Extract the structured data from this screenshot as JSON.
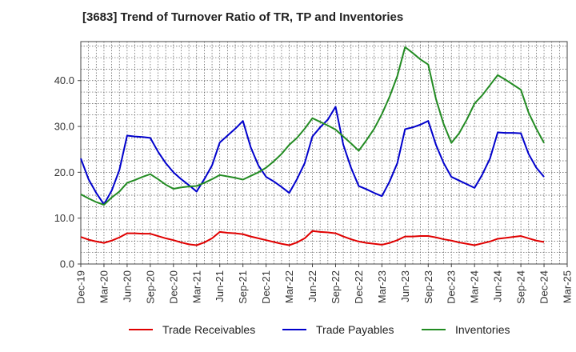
{
  "chart_data": {
    "type": "line",
    "title": "[3683]  Trend of Turnover Ratio of TR, TP and Inventories",
    "xlabel": "",
    "ylabel": "",
    "ylim": [
      0,
      48.5
    ],
    "yticks": [
      0,
      10,
      20,
      30,
      40
    ],
    "ytick_labels": [
      "0.0",
      "10.0",
      "20.0",
      "30.0",
      "40.0"
    ],
    "x": [
      "Dec-19",
      "Jan-20",
      "Feb-20",
      "Mar-20",
      "Apr-20",
      "May-20",
      "Jun-20",
      "Jul-20",
      "Aug-20",
      "Sep-20",
      "Oct-20",
      "Nov-20",
      "Dec-20",
      "Jan-21",
      "Feb-21",
      "Mar-21",
      "Apr-21",
      "May-21",
      "Jun-21",
      "Jul-21",
      "Aug-21",
      "Sep-21",
      "Oct-21",
      "Nov-21",
      "Dec-21",
      "Jan-22",
      "Feb-22",
      "Mar-22",
      "Apr-22",
      "May-22",
      "Jun-22",
      "Jul-22",
      "Aug-22",
      "Sep-22",
      "Oct-22",
      "Nov-22",
      "Dec-22",
      "Jan-23",
      "Feb-23",
      "Mar-23",
      "Apr-23",
      "May-23",
      "Jun-23",
      "Jul-23",
      "Aug-23",
      "Sep-23",
      "Oct-23",
      "Nov-23",
      "Dec-23",
      "Jan-24",
      "Feb-24",
      "Mar-24",
      "Apr-24",
      "May-24",
      "Jun-24",
      "Jul-24",
      "Aug-24",
      "Sep-24",
      "Oct-24",
      "Nov-24",
      "Dec-24",
      "Jan-25",
      "Feb-25",
      "Mar-25"
    ],
    "xtick_labels": [
      "Dec-19",
      "Mar-20",
      "Jun-20",
      "Sep-20",
      "Dec-20",
      "Mar-21",
      "Jun-21",
      "Sep-21",
      "Dec-21",
      "Mar-22",
      "Jun-22",
      "Sep-22",
      "Dec-22",
      "Mar-23",
      "Jun-23",
      "Sep-23",
      "Dec-23",
      "Mar-24",
      "Jun-24",
      "Sep-24",
      "Dec-24",
      "Mar-25"
    ],
    "grid": true,
    "legend_position": "bottom",
    "series": [
      {
        "name": "Trade Receivables",
        "color": "#e00000",
        "values": [
          5.9,
          5.3,
          4.9,
          4.6,
          5.1,
          5.8,
          6.7,
          6.7,
          6.6,
          6.6,
          6.1,
          5.6,
          5.2,
          4.7,
          4.3,
          4.1,
          4.7,
          5.6,
          7.0,
          6.8,
          6.7,
          6.5,
          6.0,
          5.6,
          5.2,
          4.8,
          4.4,
          4.1,
          4.7,
          5.6,
          7.2,
          7.0,
          6.9,
          6.7,
          6.0,
          5.4,
          4.9,
          4.6,
          4.4,
          4.2,
          4.6,
          5.2,
          6.0,
          6.0,
          6.1,
          6.1,
          5.8,
          5.4,
          5.1,
          4.7,
          4.4,
          4.1,
          4.5,
          4.9,
          5.5,
          5.7,
          5.9,
          6.1,
          5.6,
          5.1,
          4.8,
          null,
          null,
          null
        ]
      },
      {
        "name": "Trade Payables",
        "color": "#0000cc",
        "values": [
          23.0,
          18.5,
          15.5,
          13.0,
          16.0,
          20.5,
          28.0,
          27.8,
          27.7,
          27.5,
          24.5,
          22.0,
          20.0,
          18.5,
          17.2,
          15.8,
          18.5,
          21.5,
          26.5,
          28.0,
          29.5,
          31.2,
          25.5,
          21.5,
          19.0,
          18.0,
          16.8,
          15.5,
          18.5,
          22.0,
          27.8,
          29.8,
          31.5,
          34.3,
          26.0,
          21.0,
          17.0,
          16.3,
          15.5,
          14.8,
          18.0,
          22.0,
          29.4,
          29.8,
          30.4,
          31.2,
          26.0,
          22.0,
          19.0,
          18.2,
          17.4,
          16.6,
          19.5,
          23.0,
          28.7,
          28.6,
          28.6,
          28.5,
          24.0,
          21.0,
          19.0,
          null,
          null,
          null
        ]
      },
      {
        "name": "Inventories",
        "color": "#228b22",
        "values": [
          15.2,
          14.3,
          13.5,
          12.9,
          14.5,
          15.8,
          17.7,
          18.3,
          19.0,
          19.6,
          18.5,
          17.3,
          16.4,
          16.7,
          16.9,
          17.0,
          17.7,
          18.5,
          19.4,
          19.1,
          18.8,
          18.4,
          19.2,
          20.0,
          21.0,
          22.4,
          24.0,
          26.0,
          27.5,
          29.5,
          31.8,
          31.0,
          30.2,
          29.3,
          27.8,
          26.3,
          24.7,
          27.0,
          29.5,
          32.7,
          36.5,
          41.0,
          47.3,
          46.0,
          44.6,
          43.5,
          36.0,
          30.5,
          26.4,
          28.5,
          31.5,
          35.0,
          36.8,
          39.0,
          41.2,
          40.2,
          39.1,
          38.0,
          33.0,
          29.5,
          26.4,
          null,
          null,
          null
        ]
      }
    ]
  }
}
